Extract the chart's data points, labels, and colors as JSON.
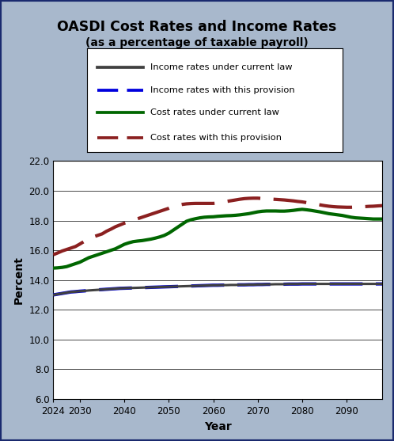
{
  "title": "OASDI Cost Rates and Income Rates",
  "subtitle": "(as a percentage of taxable payroll)",
  "xlabel": "Year",
  "ylabel": "Percent",
  "ylim": [
    6.0,
    22.0
  ],
  "yticks": [
    6.0,
    8.0,
    10.0,
    12.0,
    14.0,
    16.0,
    18.0,
    20.0,
    22.0
  ],
  "xlim": [
    2024,
    2098
  ],
  "xticks": [
    2024,
    2030,
    2040,
    2050,
    2060,
    2070,
    2080,
    2090
  ],
  "background_color": "#a8b8cc",
  "plot_bg_color": "#ffffff",
  "border_color": "#1a2a6e",
  "years": [
    2024,
    2025,
    2026,
    2027,
    2028,
    2029,
    2030,
    2031,
    2032,
    2033,
    2034,
    2035,
    2036,
    2037,
    2038,
    2039,
    2040,
    2041,
    2042,
    2043,
    2044,
    2045,
    2046,
    2047,
    2048,
    2049,
    2050,
    2051,
    2052,
    2053,
    2054,
    2055,
    2056,
    2057,
    2058,
    2059,
    2060,
    2061,
    2062,
    2063,
    2064,
    2065,
    2066,
    2067,
    2068,
    2069,
    2070,
    2071,
    2072,
    2073,
    2074,
    2075,
    2076,
    2077,
    2078,
    2079,
    2080,
    2081,
    2082,
    2083,
    2084,
    2085,
    2086,
    2087,
    2088,
    2089,
    2090,
    2091,
    2092,
    2093,
    2094,
    2095,
    2096,
    2097,
    2098
  ],
  "income_current_law": [
    13.0,
    13.05,
    13.1,
    13.15,
    13.2,
    13.22,
    13.25,
    13.27,
    13.3,
    13.32,
    13.34,
    13.36,
    13.38,
    13.4,
    13.42,
    13.44,
    13.45,
    13.46,
    13.47,
    13.48,
    13.49,
    13.5,
    13.51,
    13.52,
    13.53,
    13.54,
    13.55,
    13.56,
    13.57,
    13.58,
    13.59,
    13.6,
    13.61,
    13.62,
    13.63,
    13.64,
    13.65,
    13.65,
    13.66,
    13.66,
    13.67,
    13.67,
    13.68,
    13.68,
    13.69,
    13.69,
    13.7,
    13.7,
    13.71,
    13.71,
    13.72,
    13.72,
    13.72,
    13.73,
    13.73,
    13.73,
    13.74,
    13.74,
    13.74,
    13.74,
    13.74,
    13.74,
    13.74,
    13.74,
    13.74,
    13.74,
    13.74,
    13.74,
    13.74,
    13.74,
    13.74,
    13.74,
    13.74,
    13.74,
    13.74
  ],
  "income_provision": [
    13.0,
    13.05,
    13.1,
    13.15,
    13.2,
    13.22,
    13.25,
    13.27,
    13.3,
    13.32,
    13.34,
    13.36,
    13.38,
    13.4,
    13.42,
    13.44,
    13.45,
    13.46,
    13.47,
    13.48,
    13.49,
    13.5,
    13.51,
    13.52,
    13.53,
    13.54,
    13.55,
    13.56,
    13.57,
    13.58,
    13.59,
    13.6,
    13.61,
    13.62,
    13.63,
    13.64,
    13.65,
    13.65,
    13.66,
    13.66,
    13.67,
    13.67,
    13.68,
    13.68,
    13.69,
    13.69,
    13.7,
    13.7,
    13.71,
    13.71,
    13.72,
    13.72,
    13.72,
    13.73,
    13.73,
    13.73,
    13.74,
    13.74,
    13.74,
    13.74,
    13.74,
    13.74,
    13.74,
    13.74,
    13.74,
    13.74,
    13.74,
    13.74,
    13.74,
    13.74,
    13.74,
    13.74,
    13.74,
    13.74,
    13.74
  ],
  "cost_current_law": [
    14.8,
    14.82,
    14.85,
    14.9,
    15.0,
    15.1,
    15.2,
    15.35,
    15.5,
    15.6,
    15.7,
    15.8,
    15.9,
    16.0,
    16.1,
    16.25,
    16.4,
    16.5,
    16.58,
    16.62,
    16.65,
    16.7,
    16.75,
    16.82,
    16.9,
    17.0,
    17.15,
    17.35,
    17.55,
    17.75,
    17.95,
    18.05,
    18.12,
    18.18,
    18.22,
    18.24,
    18.25,
    18.28,
    18.3,
    18.32,
    18.33,
    18.35,
    18.38,
    18.42,
    18.46,
    18.52,
    18.58,
    18.62,
    18.64,
    18.64,
    18.64,
    18.63,
    18.63,
    18.65,
    18.68,
    18.72,
    18.75,
    18.72,
    18.68,
    18.63,
    18.58,
    18.52,
    18.46,
    18.42,
    18.38,
    18.34,
    18.28,
    18.22,
    18.18,
    18.16,
    18.14,
    18.12,
    18.1,
    18.1,
    18.1
  ],
  "cost_provision": [
    15.7,
    15.82,
    15.95,
    16.05,
    16.15,
    16.25,
    16.42,
    16.6,
    16.78,
    16.9,
    17.0,
    17.1,
    17.28,
    17.42,
    17.58,
    17.7,
    17.82,
    17.92,
    18.02,
    18.12,
    18.22,
    18.32,
    18.42,
    18.52,
    18.62,
    18.72,
    18.82,
    18.95,
    19.02,
    19.08,
    19.12,
    19.14,
    19.15,
    19.15,
    19.15,
    19.15,
    19.15,
    19.18,
    19.22,
    19.28,
    19.33,
    19.38,
    19.43,
    19.47,
    19.49,
    19.5,
    19.5,
    19.48,
    19.46,
    19.44,
    19.42,
    19.4,
    19.38,
    19.35,
    19.32,
    19.28,
    19.25,
    19.2,
    19.15,
    19.1,
    19.05,
    19.0,
    18.96,
    18.93,
    18.91,
    18.9,
    18.89,
    18.89,
    18.9,
    18.92,
    18.93,
    18.95,
    18.96,
    18.98,
    19.0
  ],
  "income_current_law_color": "#404040",
  "income_provision_color": "#0000dd",
  "cost_current_law_color": "#006600",
  "cost_provision_color": "#8b2020",
  "line_width": 2.2,
  "legend_labels": [
    "Income rates under current law",
    "Income rates with this provision",
    "Cost rates under current law",
    "Cost rates with this provision"
  ]
}
